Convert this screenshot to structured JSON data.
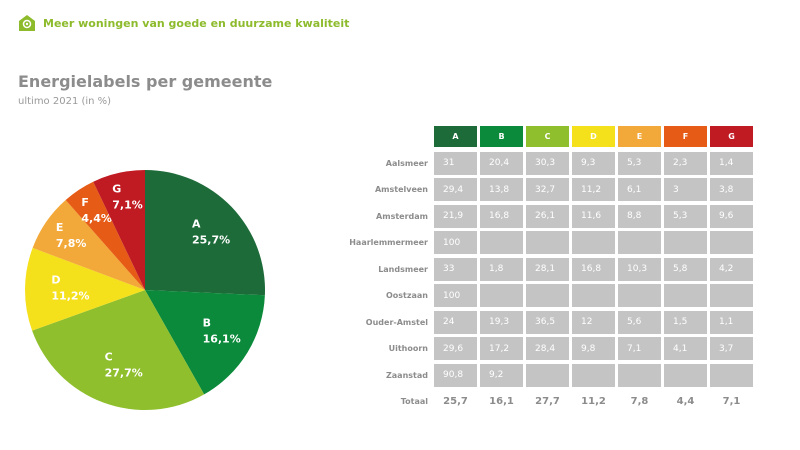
{
  "header": {
    "tagline": "Meer woningen van goede en duurzame kwaliteit",
    "logo_icon": "house-flower-icon"
  },
  "title": "Energielabels per gemeente",
  "subtitle": "ultimo 2021 (in %)",
  "chart_data": [
    {
      "type": "pie",
      "categories": [
        "A",
        "B",
        "C",
        "D",
        "E",
        "F",
        "G"
      ],
      "values": [
        25.7,
        16.1,
        27.7,
        11.2,
        7.8,
        4.4,
        7.1
      ],
      "value_labels": [
        "25,7%",
        "16,1%",
        "27,7%",
        "11,2%",
        "7,8%",
        "4,4%",
        "7,1%"
      ],
      "colors": [
        "#1e6b3a",
        "#0a8a3a",
        "#8fbf2c",
        "#f5e01c",
        "#f2a93a",
        "#e65c17",
        "#c01a22"
      ]
    },
    {
      "type": "table",
      "columns": [
        "A",
        "B",
        "C",
        "D",
        "E",
        "F",
        "G"
      ],
      "column_colors": [
        "#1e6b3a",
        "#0a8a3a",
        "#8fbf2c",
        "#f5e01c",
        "#f2a93a",
        "#e65c17",
        "#c01a22"
      ],
      "rows": [
        {
          "name": "Aalsmeer",
          "values": [
            "31",
            "20,4",
            "30,3",
            "9,3",
            "5,3",
            "2,3",
            "1,4"
          ]
        },
        {
          "name": "Amstelveen",
          "values": [
            "29,4",
            "13,8",
            "32,7",
            "11,2",
            "6,1",
            "3",
            "3,8"
          ]
        },
        {
          "name": "Amsterdam",
          "values": [
            "21,9",
            "16,8",
            "26,1",
            "11,6",
            "8,8",
            "5,3",
            "9,6"
          ]
        },
        {
          "name": "Haarlemmermeer",
          "values": [
            "100",
            "",
            "",
            "",
            "",
            "",
            ""
          ]
        },
        {
          "name": "Landsmeer",
          "values": [
            "33",
            "1,8",
            "28,1",
            "16,8",
            "10,3",
            "5,8",
            "4,2"
          ]
        },
        {
          "name": "Oostzaan",
          "values": [
            "100",
            "",
            "",
            "",
            "",
            "",
            ""
          ]
        },
        {
          "name": "Ouder-Amstel",
          "values": [
            "24",
            "19,3",
            "36,5",
            "12",
            "5,6",
            "1,5",
            "1,1"
          ]
        },
        {
          "name": "Uithoorn",
          "values": [
            "29,6",
            "17,2",
            "28,4",
            "9,8",
            "7,1",
            "4,1",
            "3,7"
          ]
        },
        {
          "name": "Zaanstad",
          "values": [
            "90,8",
            "9,2",
            "",
            "",
            "",
            "",
            ""
          ]
        }
      ],
      "total": {
        "name": "Totaal",
        "values": [
          "25,7",
          "16,1",
          "27,7",
          "11,2",
          "7,8",
          "4,4",
          "7,1"
        ]
      }
    }
  ]
}
